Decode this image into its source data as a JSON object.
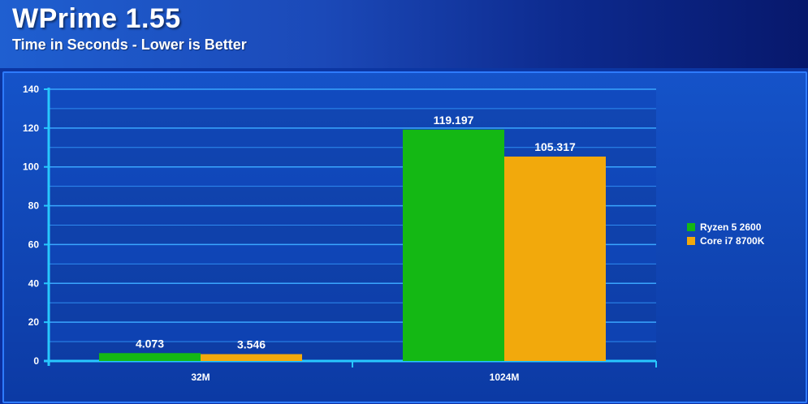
{
  "chart_data": {
    "type": "bar",
    "title": "WPrime 1.55",
    "subtitle": "Time in Seconds - Lower is Better",
    "categories": [
      "32M",
      "1024M"
    ],
    "series": [
      {
        "name": "Ryzen 5 2600",
        "color": "#14b814",
        "values": [
          4.073,
          119.197
        ],
        "labels": [
          "4.073",
          "119.197"
        ]
      },
      {
        "name": "Core i7 8700K",
        "color": "#f2a90c",
        "values": [
          3.546,
          105.317
        ],
        "labels": [
          "3.546",
          "105.317"
        ]
      }
    ],
    "ylim": [
      0,
      140
    ],
    "yticks": [
      "0",
      "20",
      "40",
      "60",
      "80",
      "100",
      "120",
      "140"
    ],
    "grid": true,
    "legend": "right"
  }
}
